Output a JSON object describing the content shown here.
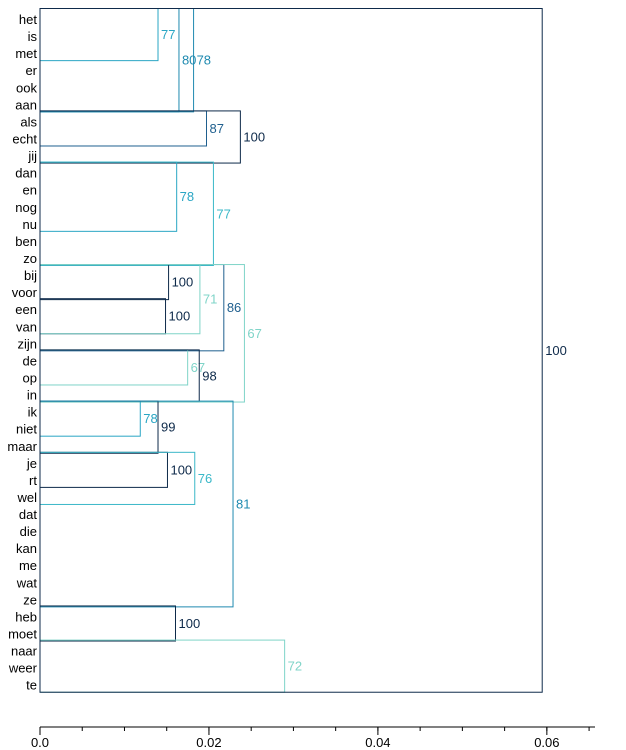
{
  "chart_data": {
    "type": "dendrogram",
    "orientation": "horizontal",
    "xlim": [
      0,
      0.0657
    ],
    "x_ticks": [
      {
        "value": 0,
        "label": "0.0"
      },
      {
        "value": 0.02,
        "label": "0.02"
      },
      {
        "value": 0.04,
        "label": "0.04"
      },
      {
        "value": 0.06,
        "label": "0.06"
      }
    ],
    "x_minor_step": 0.005,
    "leaves": [
      "het",
      "is",
      "met",
      "er",
      "ook",
      "aan",
      "als",
      "echt",
      "jij",
      "dan",
      "en",
      "nog",
      "nu",
      "ben",
      "zo",
      "bij",
      "voor",
      "een",
      "van",
      "zijn",
      "de",
      "op",
      "in",
      "ik",
      "niet",
      "maar",
      "je",
      "rt",
      "wel",
      "dat",
      "die",
      "kan",
      "me",
      "wat",
      "ze",
      "heb",
      "moet",
      "naar",
      "weer",
      "te"
    ],
    "clusters": [
      {
        "from": 0,
        "to": 2,
        "height": 0.01397,
        "label": "77",
        "color": "#2aa6c4"
      },
      {
        "from": 0,
        "to": 5,
        "height": 0.01645,
        "label": "80",
        "color": "#1f8ab0"
      },
      {
        "from": 0,
        "to": 5,
        "height": 0.01818,
        "label": "78",
        "color": "#1f8ab0"
      },
      {
        "from": 6,
        "to": 7,
        "height": 0.01971,
        "label": "87",
        "color": "#1f5f8e"
      },
      {
        "from": 6,
        "to": 8,
        "height": 0.02372,
        "label": "100",
        "color": "#0e2a4a"
      },
      {
        "from": 9,
        "to": 12,
        "height": 0.01618,
        "label": "78",
        "color": "#2aa6c4"
      },
      {
        "from": 9,
        "to": 14,
        "height": 0.02053,
        "label": "77",
        "color": "#3ab8c8"
      },
      {
        "from": 15,
        "to": 16,
        "height": 0.01522,
        "label": "100",
        "color": "#0e2a4a"
      },
      {
        "from": 17,
        "to": 18,
        "height": 0.01486,
        "label": "100",
        "color": "#0e2a4a"
      },
      {
        "from": 15,
        "to": 18,
        "height": 0.01893,
        "label": "71",
        "color": "#7fd4c8"
      },
      {
        "from": 15,
        "to": 19,
        "height": 0.02176,
        "label": "86",
        "color": "#1f5f8e"
      },
      {
        "from": 20,
        "to": 21,
        "height": 0.01748,
        "label": "67",
        "color": "#7fd4c8"
      },
      {
        "from": 20,
        "to": 22,
        "height": 0.01885,
        "label": "98",
        "color": "#0e2a4a"
      },
      {
        "from": 15,
        "to": 22,
        "height": 0.0242,
        "label": "67",
        "color": "#7fd4c8"
      },
      {
        "from": 23,
        "to": 24,
        "height": 0.01187,
        "label": "78",
        "color": "#2aa6c4"
      },
      {
        "from": 23,
        "to": 25,
        "height": 0.01397,
        "label": "99",
        "color": "#0e2a4a"
      },
      {
        "from": 26,
        "to": 27,
        "height": 0.01509,
        "label": "100",
        "color": "#0e2a4a"
      },
      {
        "from": 26,
        "to": 28,
        "height": 0.01832,
        "label": "76",
        "color": "#3ab8c8"
      },
      {
        "from": 23,
        "to": 34,
        "height": 0.02285,
        "label": "81",
        "color": "#1f8ab0"
      },
      {
        "from": 35,
        "to": 36,
        "height": 0.01604,
        "label": "100",
        "color": "#0e2a4a"
      },
      {
        "from": 37,
        "to": 39,
        "height": 0.02896,
        "label": "72",
        "color": "#7fd4c8"
      },
      {
        "from": 0,
        "to": 39,
        "height": 0.05945,
        "label": "100",
        "color": "#0e2a4a"
      }
    ]
  }
}
